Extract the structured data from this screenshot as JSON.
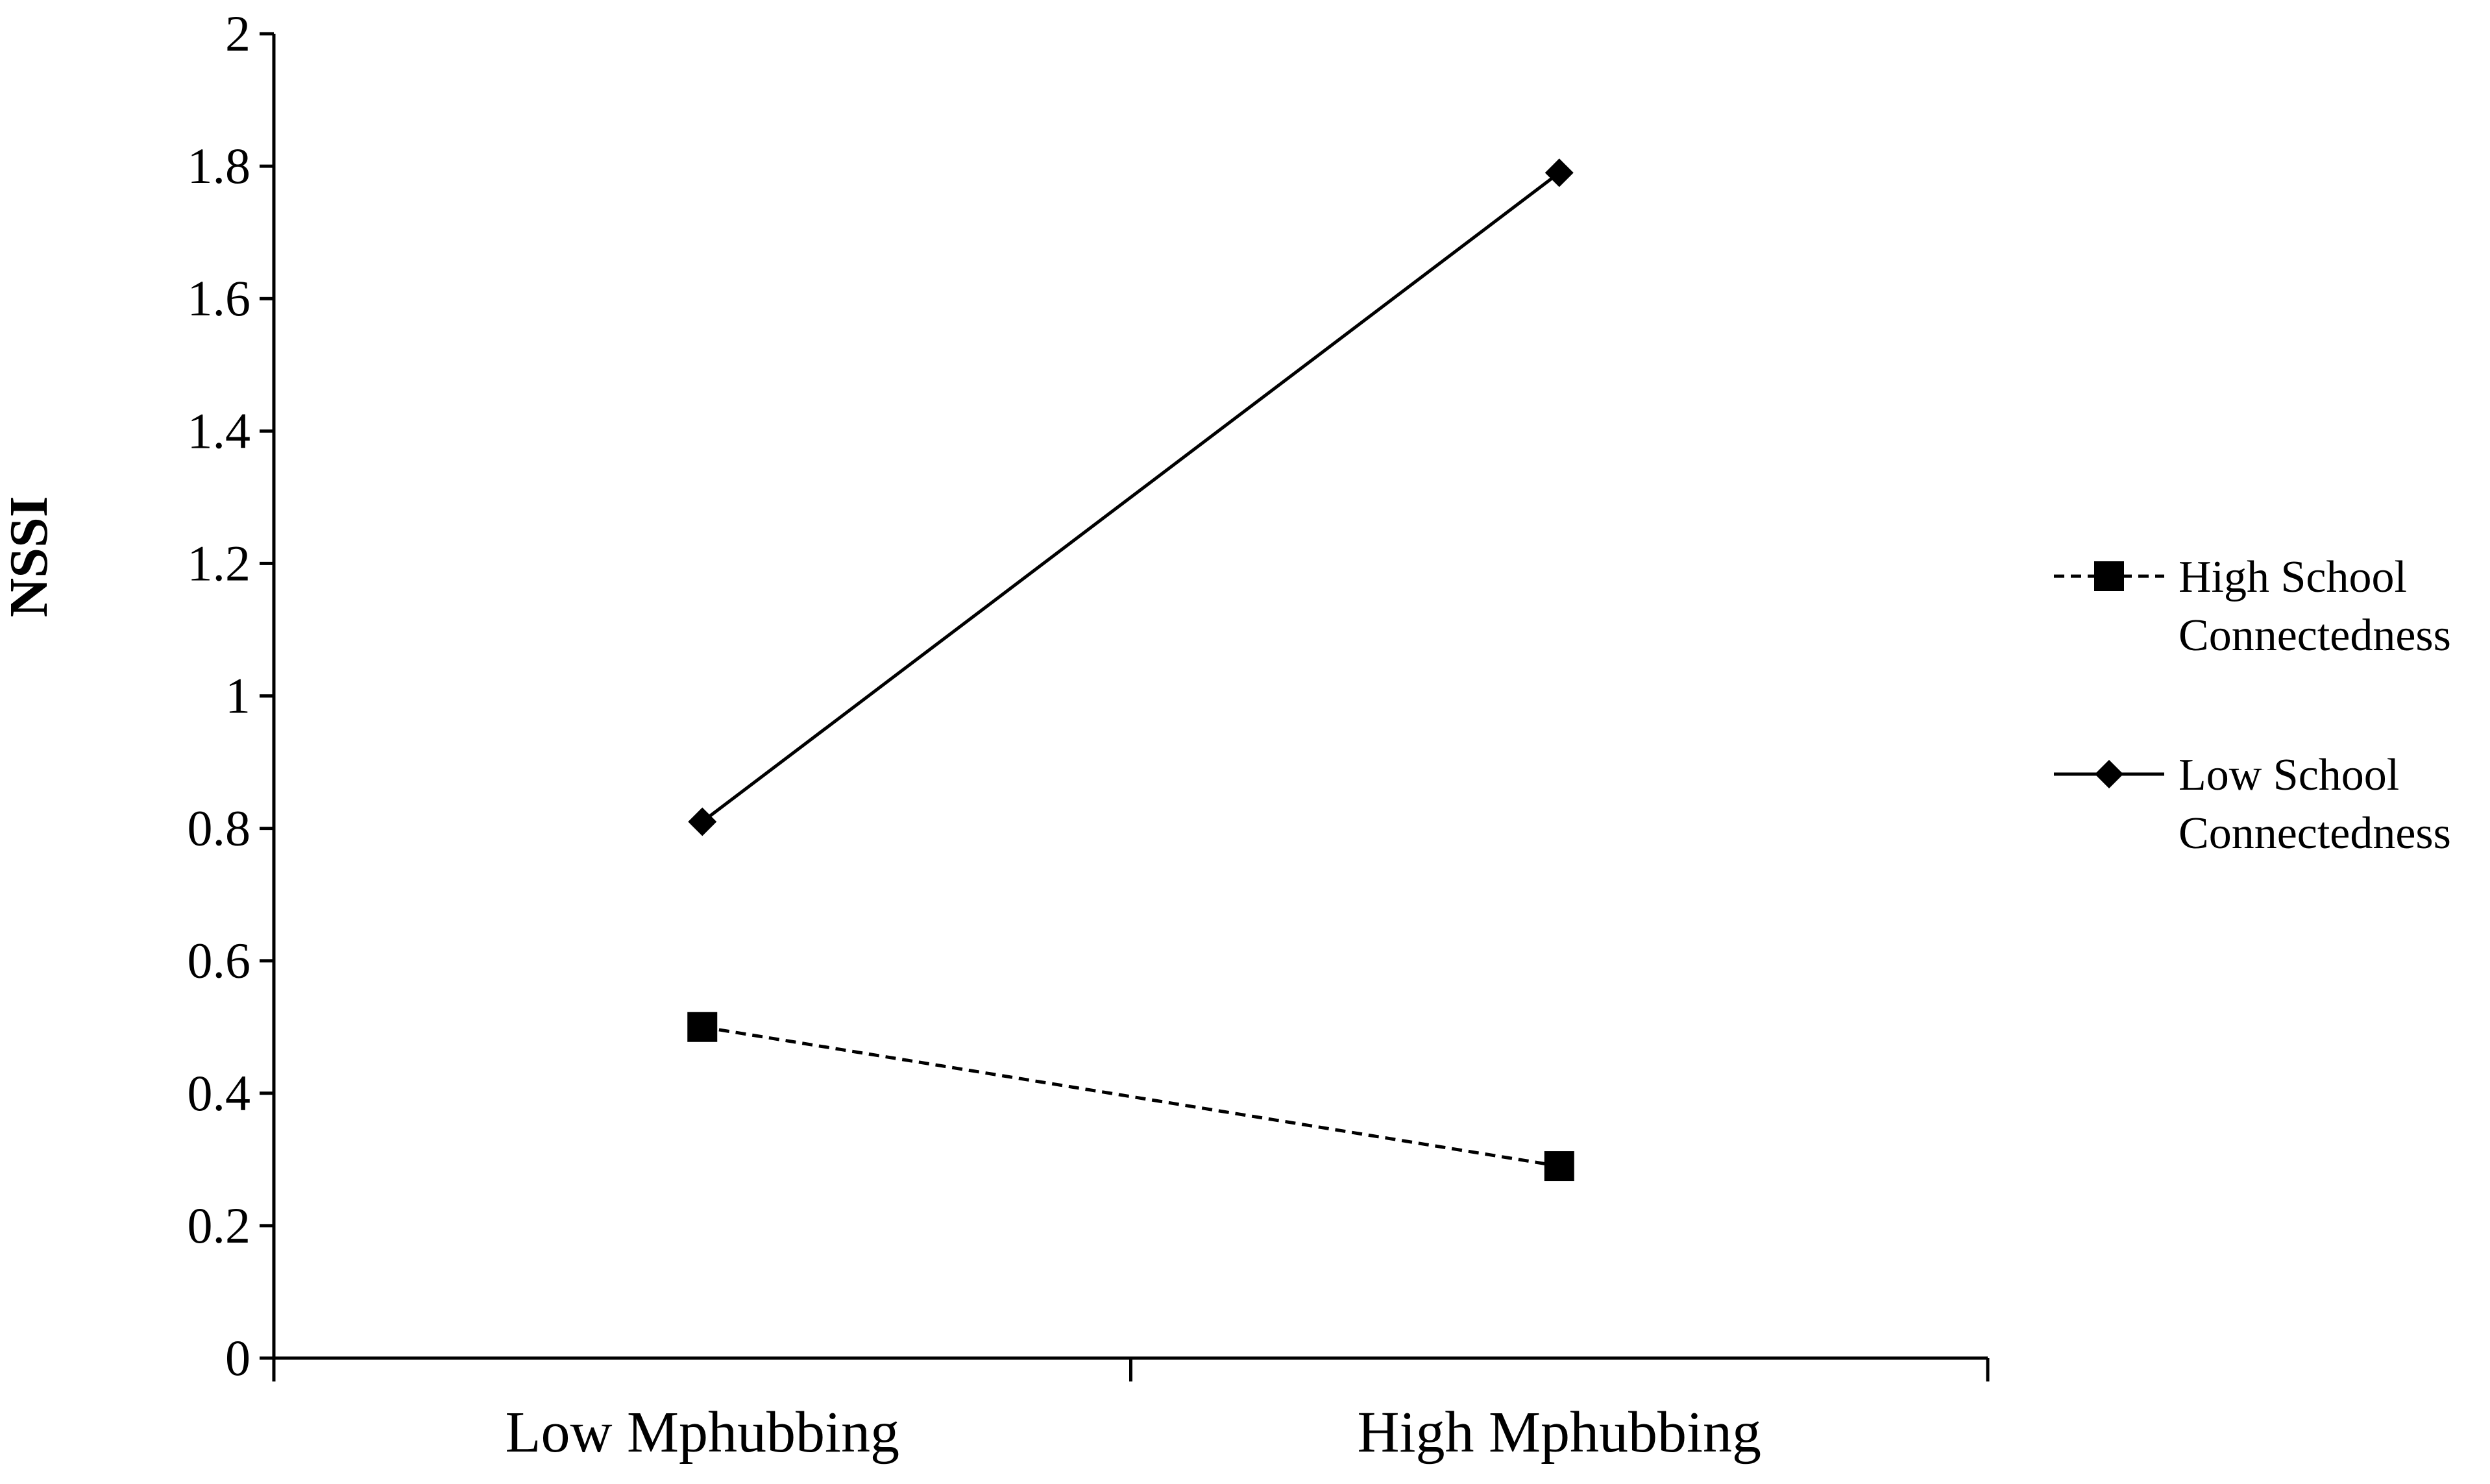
{
  "chart_data": {
    "type": "line",
    "title": "",
    "xlabel": "",
    "ylabel": "NSSI",
    "categories": [
      "Low Mphubbing",
      "High Mphubbing"
    ],
    "ylim": [
      0,
      2
    ],
    "yticks": [
      0,
      0.2,
      0.4,
      0.6,
      0.8,
      1,
      1.2,
      1.4,
      1.6,
      1.8,
      2
    ],
    "ytick_labels": [
      "0",
      "0.2",
      "0.4",
      "0.6",
      "0.8",
      "1",
      "1.2",
      "1.4",
      "1.6",
      "1.8",
      "2"
    ],
    "grid": false,
    "legend_position": "right",
    "series": [
      {
        "name_lines": [
          "High School",
          "Connectedness"
        ],
        "values": [
          0.5,
          0.29
        ],
        "marker": "square",
        "line_style": "dashed",
        "color": "#000000"
      },
      {
        "name_lines": [
          "Low School",
          "Connectedness"
        ],
        "values": [
          0.81,
          1.79
        ],
        "marker": "diamond",
        "line_style": "solid",
        "color": "#000000"
      }
    ]
  }
}
